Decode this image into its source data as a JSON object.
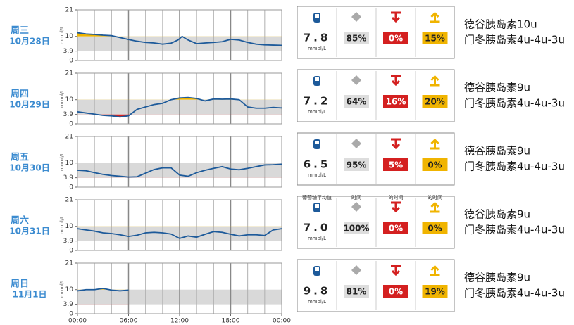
{
  "days": [
    {
      "weekday": "周三",
      "date": "10月28日",
      "avg": "7.8",
      "unit": "mmol/L",
      "in_range": "85%",
      "low": "0%",
      "high": "15%",
      "insulin": [
        "德谷胰岛素10u",
        "门冬胰岛素4u-4u-3u"
      ]
    },
    {
      "weekday": "周四",
      "date": "10月29日",
      "avg": "7.2",
      "unit": "mmol/L",
      "in_range": "64%",
      "low": "16%",
      "high": "20%",
      "insulin": [
        "德谷胰岛素9u",
        "门冬胰岛素4u-4u-3u"
      ]
    },
    {
      "weekday": "周五",
      "date": "10月30日",
      "avg": "6.5",
      "unit": "mmol/L",
      "in_range": "95%",
      "low": "5%",
      "high": "0%",
      "insulin": [
        "德谷胰岛素9u",
        "门冬胰岛素4u-4u-3u"
      ]
    },
    {
      "weekday": "周六",
      "date": "10月31日",
      "avg": "7.0",
      "unit": "mmol/L",
      "in_range": "100%",
      "low": "0%",
      "high": "0%",
      "insulin": [
        "德谷胰岛素9u",
        "门冬胰岛素4u-4u-3u"
      ],
      "headers": [
        "葡萄糖平均值",
        "时间",
        "的时间",
        "的时间"
      ]
    },
    {
      "weekday": "周日",
      "date": "11月1日",
      "avg": "9.8",
      "unit": "mmol/L",
      "in_range": "81%",
      "low": "0%",
      "high": "19%",
      "insulin": [
        "德谷胰岛素9u",
        "门冬胰岛素4u-4u-3u"
      ]
    }
  ],
  "chart_data": [
    {
      "type": "line",
      "ylabel": "mmol/L",
      "ylim": [
        0,
        21
      ],
      "yticks": [
        0,
        3.9,
        10,
        21
      ],
      "xlim": [
        0,
        24
      ],
      "target_range": [
        3.9,
        10
      ],
      "x": [
        0,
        1,
        2,
        3,
        4,
        5,
        6,
        7,
        8,
        9,
        10,
        11,
        11.8,
        12.3,
        13,
        14,
        15,
        16,
        17,
        18,
        19,
        20,
        21,
        22,
        23,
        24
      ],
      "series": [
        {
          "color": "#1d5a9a",
          "values": [
            11.5,
            11,
            10.8,
            10.5,
            10.3,
            9.5,
            8.7,
            8,
            7.5,
            7.3,
            6.8,
            7.2,
            8.5,
            10,
            8.5,
            7,
            7.3,
            7.5,
            7.8,
            8.8,
            8.5,
            7.5,
            6.8,
            6.5,
            6.4,
            6.3
          ]
        }
      ]
    },
    {
      "type": "line",
      "ylabel": "mmol/L",
      "ylim": [
        0,
        21
      ],
      "yticks": [
        0,
        3.9,
        10,
        21
      ],
      "xlim": [
        0,
        24
      ],
      "target_range": [
        3.9,
        10
      ],
      "x": [
        0,
        1,
        2,
        3,
        4,
        5,
        6,
        7,
        8,
        9,
        10,
        11,
        12,
        13,
        14,
        15,
        16,
        17,
        18,
        19,
        20,
        21,
        22,
        23,
        24
      ],
      "series": [
        {
          "color": "#1d5a9a",
          "values": [
            5,
            4.5,
            4,
            3.5,
            3.3,
            2.8,
            3.3,
            6,
            7,
            8,
            8.5,
            10,
            10.7,
            10.9,
            10.5,
            9.5,
            10.3,
            10.2,
            10.3,
            10,
            7,
            6.5,
            6.5,
            6.8,
            6.6
          ]
        }
      ]
    },
    {
      "type": "line",
      "ylabel": "mmol/L",
      "ylim": [
        0,
        21
      ],
      "yticks": [
        0,
        3.9,
        10,
        21
      ],
      "xlim": [
        0,
        24
      ],
      "target_range": [
        3.9,
        10
      ],
      "x": [
        0,
        1,
        2,
        3,
        4,
        5,
        6,
        7,
        8,
        9,
        10,
        11,
        12,
        13,
        14,
        15,
        16,
        17,
        18,
        19,
        20,
        21,
        22,
        23,
        24
      ],
      "series": [
        {
          "color": "#1d5a9a",
          "values": [
            7,
            6.8,
            6,
            5.3,
            4.8,
            4.5,
            4.2,
            4.3,
            5.8,
            7.3,
            8,
            8,
            5,
            4.5,
            6,
            7,
            7.8,
            8.5,
            7.5,
            7.2,
            7.8,
            8.5,
            9.2,
            9.3,
            9.5
          ]
        }
      ]
    },
    {
      "type": "line",
      "ylabel": "mmol/L",
      "ylim": [
        0,
        21
      ],
      "yticks": [
        0,
        3.9,
        10,
        21
      ],
      "xlim": [
        0,
        24
      ],
      "target_range": [
        3.9,
        10
      ],
      "x": [
        0,
        1,
        2,
        3,
        4,
        5,
        6,
        7,
        8,
        9,
        10,
        11,
        12,
        13,
        14,
        15,
        16,
        17,
        18,
        19,
        20,
        21,
        22,
        23,
        24
      ],
      "series": [
        {
          "color": "#1d5a9a",
          "values": [
            9,
            8.5,
            8,
            7.3,
            7,
            6.5,
            5.8,
            6.3,
            7.3,
            7.5,
            7.3,
            6.8,
            5,
            6,
            5.5,
            6.7,
            7.8,
            7.5,
            6.7,
            6,
            6.5,
            6.5,
            6.2,
            8.5,
            9
          ]
        }
      ]
    },
    {
      "type": "line",
      "ylabel": "mmol/L",
      "ylim": [
        0,
        21
      ],
      "yticks": [
        0,
        3.9,
        10,
        21
      ],
      "xlim": [
        0,
        24
      ],
      "target_range": [
        3.9,
        10
      ],
      "xticks": [
        {
          "value": 0,
          "label": "00:00"
        },
        {
          "value": 6,
          "label": "06:00"
        },
        {
          "value": 12,
          "label": "12:00"
        },
        {
          "value": 18,
          "label": "18:00"
        },
        {
          "value": 24,
          "label": "00:00"
        }
      ],
      "x": [
        0,
        1,
        2,
        3,
        4,
        5,
        6
      ],
      "series": [
        {
          "color": "#1d5a9a",
          "values": [
            9.5,
            10,
            10,
            10.5,
            9.8,
            9.5,
            9.8
          ]
        }
      ]
    }
  ]
}
